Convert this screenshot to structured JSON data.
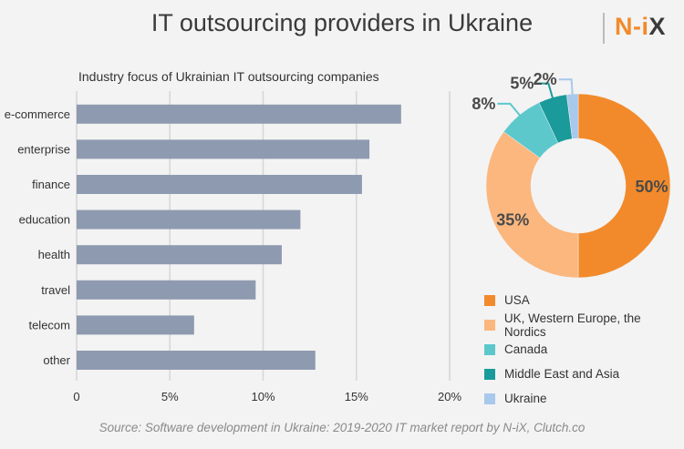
{
  "header": {
    "title": "IT outsourcing providers in Ukraine",
    "logo": {
      "main": "N-i",
      "accent": "X"
    }
  },
  "source_note": "Source:  Software development in Ukraine: 2019-2020 IT market report by N-iX, Clutch.co",
  "colors": {
    "background": "#f3f3f3",
    "bar": "#8e9aaf",
    "brand": "#f28a2b"
  },
  "chart_data": [
    {
      "type": "bar",
      "orientation": "horizontal",
      "title": "Industry focus of Ukrainian IT outsourcing companies",
      "categories": [
        "e-commerce",
        "enterprise",
        "finance",
        "education",
        "health",
        "travel",
        "telecom",
        "other"
      ],
      "values": [
        17.4,
        15.7,
        15.3,
        12.0,
        11.0,
        9.6,
        6.3,
        12.8
      ],
      "xlim": [
        0,
        20
      ],
      "xticks": [
        "0",
        "5%",
        "10%",
        "15%",
        "20%"
      ],
      "tick_values": [
        0,
        5,
        10,
        15,
        20
      ],
      "grid": true
    },
    {
      "type": "pie",
      "style": "donut",
      "labels": [
        "USA",
        "UK, Western Europe, the Nordics",
        "Canada",
        "Middle East and Asia",
        "Ukraine"
      ],
      "values": [
        50,
        35,
        8,
        5,
        2
      ],
      "value_labels": [
        "50%",
        "35%",
        "8%",
        "5%",
        "2%"
      ],
      "colors": [
        "#f28a2b",
        "#fbb77e",
        "#5cc8cc",
        "#1a9a9a",
        "#a8c8ec"
      ],
      "legend": "bottom-right"
    }
  ]
}
